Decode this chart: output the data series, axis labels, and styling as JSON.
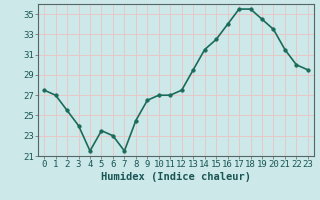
{
  "x": [
    0,
    1,
    2,
    3,
    4,
    5,
    6,
    7,
    8,
    9,
    10,
    11,
    12,
    13,
    14,
    15,
    16,
    17,
    18,
    19,
    20,
    21,
    22,
    23
  ],
  "y": [
    27.5,
    27.0,
    25.5,
    24.0,
    21.5,
    23.5,
    23.0,
    21.5,
    24.5,
    26.5,
    27.0,
    27.0,
    27.5,
    29.5,
    31.5,
    32.5,
    34.0,
    35.5,
    35.5,
    34.5,
    33.5,
    31.5,
    30.0,
    29.5
  ],
  "line_color": "#1a6b5a",
  "marker_color": "#1a6b5a",
  "bg_color": "#cce8e8",
  "grid_color": "#e8c8c8",
  "xlabel": "Humidex (Indice chaleur)",
  "ylim": [
    21,
    36
  ],
  "xlim": [
    -0.5,
    23.5
  ],
  "yticks": [
    21,
    23,
    25,
    27,
    29,
    31,
    33,
    35
  ],
  "xticks": [
    0,
    1,
    2,
    3,
    4,
    5,
    6,
    7,
    8,
    9,
    10,
    11,
    12,
    13,
    14,
    15,
    16,
    17,
    18,
    19,
    20,
    21,
    22,
    23
  ],
  "xlabel_fontsize": 7.5,
  "tick_fontsize": 6.5,
  "linewidth": 1.2,
  "markersize": 2.5
}
